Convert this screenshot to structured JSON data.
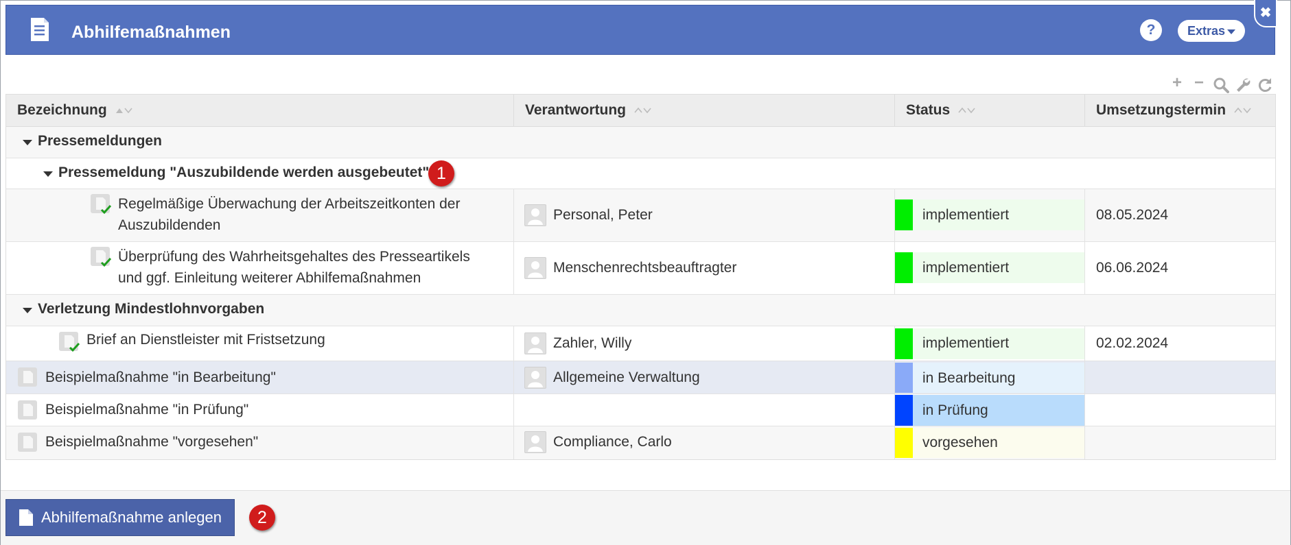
{
  "dialog": {
    "title": "Abhilfemaßnahmen",
    "help_label": "?",
    "extras_label": "Extras",
    "close_label": "✖"
  },
  "toolbar": {
    "icons": [
      "plus-icon",
      "minus-icon",
      "search-icon",
      "wrench-icon",
      "refresh-icon"
    ]
  },
  "table": {
    "columns": [
      "Bezeichnung",
      "Verantwortung",
      "Status",
      "Umsetzungstermin"
    ],
    "groups": [
      {
        "label": "Pressemeldungen"
      },
      {
        "label": "Pressemeldung \"Auszubildende werden ausgebeutet\"",
        "badge": "1"
      },
      {
        "label": "Verletzung Mindestlohnvorgaben"
      }
    ],
    "rows": [
      {
        "line1": "Regelmäßige Überwachung der Arbeitszeitkonten der",
        "line2": "Auszubildenden",
        "responsible": "Personal, Peter",
        "status": "implementiert",
        "date": "08.05.2024"
      },
      {
        "line1": "Überprüfung des Wahrheitsgehaltes des Presseartikels",
        "line2": "und ggf. Einleitung weiterer Abhilfemaßnahmen",
        "responsible": "Menschenrechtsbeauftragter",
        "status": "implementiert",
        "date": "06.06.2024"
      },
      {
        "line1": "Brief an Dienstleister mit Fristsetzung",
        "responsible": "Zahler, Willy",
        "status": "implementiert",
        "date": "02.02.2024"
      },
      {
        "line1": "Beispielmaßnahme \"in Bearbeitung\"",
        "responsible": "Allgemeine Verwaltung",
        "status": "in Bearbeitung",
        "date": ""
      },
      {
        "line1": "Beispielmaßnahme \"in Prüfung\"",
        "responsible": "",
        "status": "in Prüfung",
        "date": ""
      },
      {
        "line1": "Beispielmaßnahme \"vorgesehen\"",
        "responsible": "Compliance, Carlo",
        "status": "vorgesehen",
        "date": ""
      }
    ]
  },
  "status_colors": {
    "implementiert": {
      "swatch": "#00ee00",
      "fill": "#eefced"
    },
    "in Bearbeitung": {
      "swatch": "#8aaaf8",
      "fill": "#e5f2fc"
    },
    "in Prüfung": {
      "swatch": "#0044ff",
      "fill": "#b9dcfc"
    },
    "vorgesehen": {
      "swatch": "#ffff00",
      "fill": "#fcfcee"
    }
  },
  "footer": {
    "create_label": "Abhilfemaßnahme anlegen",
    "badge": "2"
  },
  "colors": {
    "header_blue": "#5472bf",
    "button_blue": "#4b63a9",
    "badge_red": "#d01c1c",
    "selected_row": "#e6eaf3"
  }
}
